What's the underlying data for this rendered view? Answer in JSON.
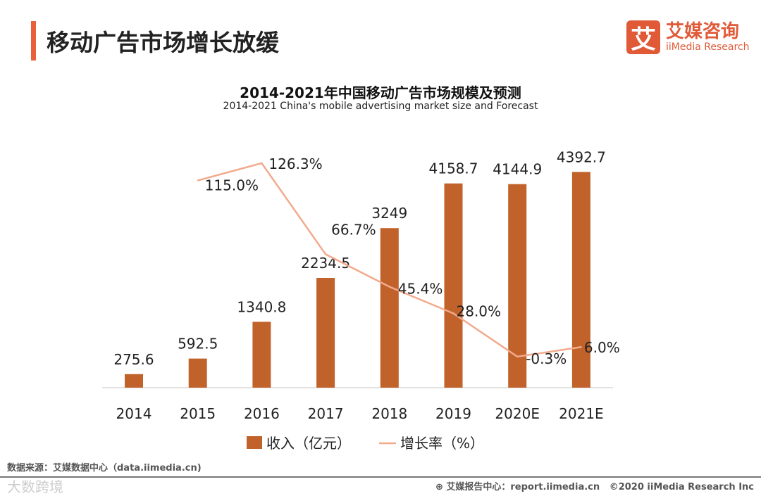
{
  "header": {
    "title": "移动广告市场增长放缓"
  },
  "logo": {
    "mark": "艾",
    "name_cn": "艾媒咨询",
    "name_en": "iiMedia Research"
  },
  "footer": {
    "source": "数据来源：艾媒数据中心（data.iimedia.cn)",
    "watermark": "大数跨境",
    "report": "艾媒报告中心：report.iimedia.cn",
    "copyright": "©2020  iiMedia Research  Inc"
  },
  "chart_data": {
    "type": "bar+line",
    "title": "2014-2021年中国移动广告市场规模及预测",
    "subtitle": "2014-2021 China's mobile advertising market size and Forecast",
    "categories": [
      "2014",
      "2015",
      "2016",
      "2017",
      "2018",
      "2019",
      "2020E",
      "2021E"
    ],
    "series": [
      {
        "name": "收入（亿元）",
        "type": "bar",
        "color": "#c0622a",
        "values": [
          275.6,
          592.5,
          1340.8,
          2234.5,
          3249,
          4158.7,
          4144.9,
          4392.7
        ],
        "labels": [
          "275.6",
          "592.5",
          "1340.8",
          "2234.5",
          "3249",
          "4158.7",
          "4144.9",
          "4392.7"
        ]
      },
      {
        "name": "增长率（%）",
        "type": "line",
        "color": "#f2aa8c",
        "values": [
          null,
          115.0,
          126.3,
          66.7,
          45.4,
          28.0,
          -0.3,
          6.0
        ],
        "labels": [
          null,
          "115.0%",
          "126.3%",
          "66.7%",
          "45.4%",
          "28.0%",
          "-0.3%",
          "6.0%"
        ]
      }
    ],
    "ylim": [
      0,
      5000
    ],
    "y2lim": [
      -20.6,
      140.1
    ],
    "grid": false,
    "legend": "bottom"
  }
}
